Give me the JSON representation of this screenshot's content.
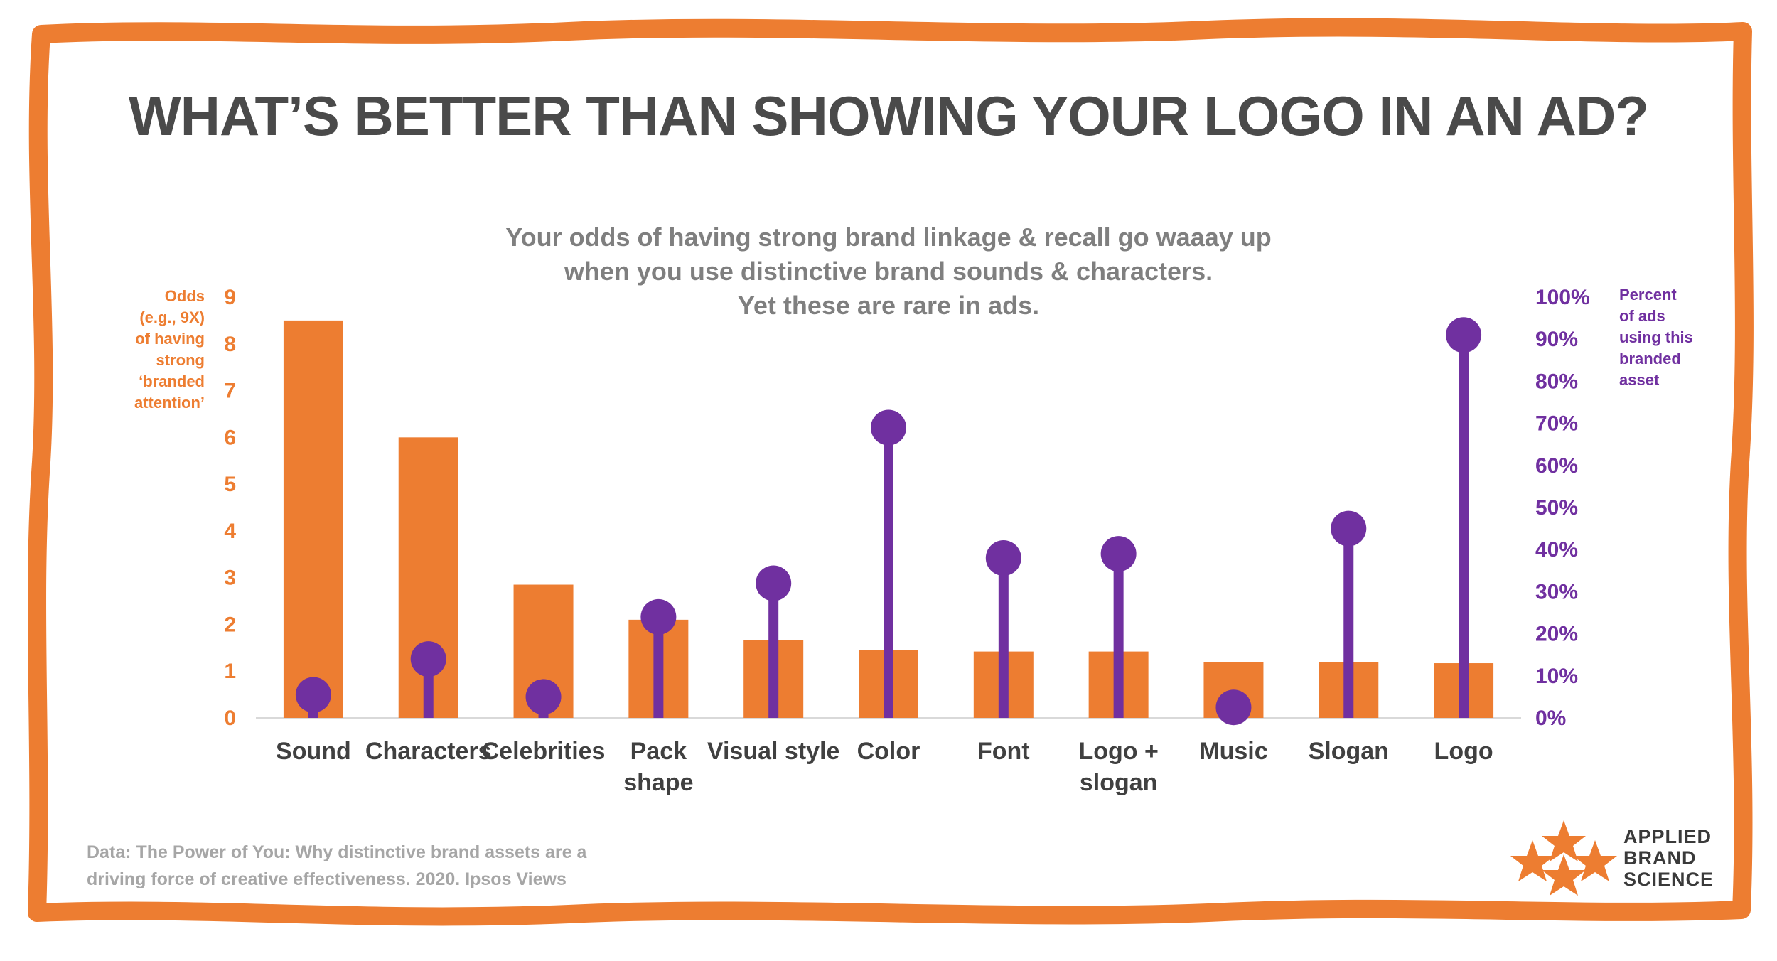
{
  "title": "WHAT’S BETTER THAN SHOWING YOUR LOGO IN AN AD?",
  "subtitle_lines": [
    "Your odds of having strong brand linkage & recall go waaay up",
    "when you use distinctive brand sounds & characters.",
    "Yet these are rare in ads."
  ],
  "left_axis_title_lines": [
    "Odds",
    "(e.g., 9X)",
    "of having",
    "strong",
    "‘branded",
    "attention’"
  ],
  "right_axis_title_lines": [
    "Percent",
    "of ads",
    "using this",
    "branded",
    "asset"
  ],
  "source_lines": [
    "Data: The Power of You: Why distinctive brand assets are a",
    "driving force of creative effectiveness. 2020. Ipsos Views"
  ],
  "brand_logo": {
    "lines": [
      "APPLIED",
      "BRAND",
      "SCIENCE"
    ],
    "icon": "star-cluster-icon"
  },
  "colors": {
    "orange": "#ed7d31",
    "purple": "#7030a0",
    "title": "#4a4a4a",
    "subtitle": "#7f7f7f",
    "source": "#a6a6a6",
    "border": "#ed7d31"
  },
  "chart_data": {
    "type": "bar",
    "categories": [
      [
        "Sound"
      ],
      [
        "Characters"
      ],
      [
        "Celebrities"
      ],
      [
        "Pack",
        "shape"
      ],
      [
        "Visual style"
      ],
      [
        "Color"
      ],
      [
        "Font"
      ],
      [
        "Logo +",
        "slogan"
      ],
      [
        "Music"
      ],
      [
        "Slogan"
      ],
      [
        "Logo"
      ]
    ],
    "series": [
      {
        "type": "bar",
        "axis": "left",
        "color": "#ed7d31",
        "values": [
          8.5,
          6.0,
          2.85,
          2.1,
          1.67,
          1.45,
          1.42,
          1.42,
          1.2,
          1.2,
          1.17
        ]
      },
      {
        "type": "lollipop",
        "axis": "right",
        "color": "#7030a0",
        "values": [
          5.5,
          14,
          5,
          24,
          32,
          69,
          38,
          39,
          2.5,
          45,
          91
        ]
      }
    ],
    "left_axis": {
      "min": 0,
      "max": 9,
      "ticks": [
        0,
        1,
        2,
        3,
        4,
        5,
        6,
        7,
        8,
        9
      ]
    },
    "right_axis": {
      "min": 0,
      "max": 100,
      "ticks": [
        "0%",
        "10%",
        "20%",
        "30%",
        "40%",
        "50%",
        "60%",
        "70%",
        "80%",
        "90%",
        "100%"
      ]
    },
    "grid": false,
    "legend": "none"
  }
}
